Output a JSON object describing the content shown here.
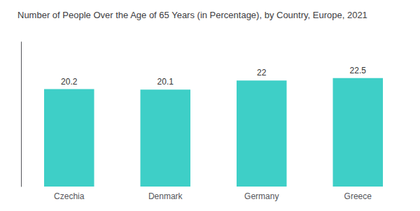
{
  "chart_data": {
    "type": "bar",
    "title": "Number of People Over the Age of 65 Years (in Percentage), by Country, Europe, 2021",
    "categories": [
      "Czechia",
      "Denmark",
      "Germany",
      "Greece"
    ],
    "values": [
      20.2,
      20.1,
      22,
      22.5
    ],
    "color": "#3ECFC7",
    "ylim": [
      0,
      30
    ],
    "data_labels": true,
    "tick_labels": "x",
    "grid": false
  }
}
